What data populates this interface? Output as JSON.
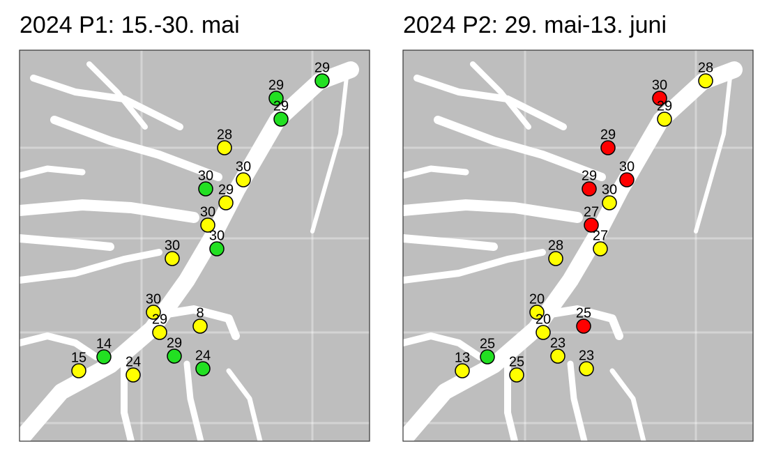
{
  "panels": [
    {
      "title": "2024 P1: 15.-30. mai",
      "points": [
        {
          "value": 29,
          "color": "#22e022"
        },
        {
          "value": 29,
          "color": "#22e022"
        },
        {
          "value": 29,
          "color": "#22e022"
        },
        {
          "value": 28,
          "color": "#ffff00"
        },
        {
          "value": 30,
          "color": "#ffff00"
        },
        {
          "value": 30,
          "color": "#22e022"
        },
        {
          "value": 29,
          "color": "#ffff00"
        },
        {
          "value": 30,
          "color": "#ffff00"
        },
        {
          "value": 30,
          "color": "#22e022"
        },
        {
          "value": 30,
          "color": "#ffff00"
        },
        {
          "value": 30,
          "color": "#ffff00"
        },
        {
          "value": 29,
          "color": "#ffff00"
        },
        {
          "value": 8,
          "color": "#ffff00"
        },
        {
          "value": 14,
          "color": "#22e022"
        },
        {
          "value": 29,
          "color": "#22e022"
        },
        {
          "value": 24,
          "color": "#22e022"
        },
        {
          "value": 15,
          "color": "#ffff00"
        },
        {
          "value": 24,
          "color": "#ffff00"
        }
      ]
    },
    {
      "title": "2024 P2: 29. mai-13. juni",
      "points": [
        {
          "value": 28,
          "color": "#ffff00"
        },
        {
          "value": 30,
          "color": "#ff0000"
        },
        {
          "value": 29,
          "color": "#ffff00"
        },
        {
          "value": 29,
          "color": "#ff0000"
        },
        {
          "value": 30,
          "color": "#ff0000"
        },
        {
          "value": 29,
          "color": "#ff0000"
        },
        {
          "value": 30,
          "color": "#ffff00"
        },
        {
          "value": 27,
          "color": "#ff0000"
        },
        {
          "value": 27,
          "color": "#ffff00"
        },
        {
          "value": 28,
          "color": "#ffff00"
        },
        {
          "value": 20,
          "color": "#ffff00"
        },
        {
          "value": 20,
          "color": "#ffff00"
        },
        {
          "value": 25,
          "color": "#ff0000"
        },
        {
          "value": 25,
          "color": "#22e022"
        },
        {
          "value": 23,
          "color": "#ffff00"
        },
        {
          "value": 23,
          "color": "#ffff00"
        },
        {
          "value": 13,
          "color": "#ffff00"
        },
        {
          "value": 25,
          "color": "#ffff00"
        }
      ]
    }
  ]
}
